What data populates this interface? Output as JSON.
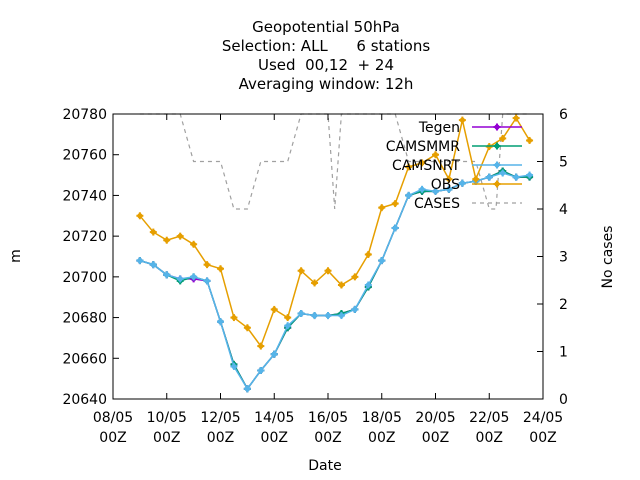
{
  "chart_data": {
    "type": "line",
    "title_lines": [
      "Geopotential 50hPa",
      "Selection: ALL      6 stations",
      "Used  00,12  + 24",
      "Averaging window: 12h"
    ],
    "xlabel": "Date",
    "ylabel": "m",
    "y2label": "No cases",
    "xlim": [
      "2017-05-08 00:00",
      "2017-05-24 00:00"
    ],
    "ylim": [
      20640,
      20780
    ],
    "y2lim": [
      0,
      6
    ],
    "x_ticks": [
      {
        "line1": "08/05",
        "line2": "00Z"
      },
      {
        "line1": "10/05",
        "line2": "00Z"
      },
      {
        "line1": "12/05",
        "line2": "00Z"
      },
      {
        "line1": "14/05",
        "line2": "00Z"
      },
      {
        "line1": "16/05",
        "line2": "00Z"
      },
      {
        "line1": "18/05",
        "line2": "00Z"
      },
      {
        "line1": "20/05",
        "line2": "00Z"
      },
      {
        "line1": "22/05",
        "line2": "00Z"
      },
      {
        "line1": "24/05",
        "line2": "00Z"
      }
    ],
    "y_ticks": [
      "20640",
      "20660",
      "20680",
      "20700",
      "20720",
      "20740",
      "20760",
      "20780"
    ],
    "y2_ticks": [
      "0",
      "1",
      "2",
      "3",
      "4",
      "5",
      "6"
    ],
    "x": [
      "2017-05-09 00:00",
      "2017-05-09 12:00",
      "2017-05-10 00:00",
      "2017-05-10 12:00",
      "2017-05-11 00:00",
      "2017-05-11 12:00",
      "2017-05-12 00:00",
      "2017-05-12 12:00",
      "2017-05-13 00:00",
      "2017-05-13 12:00",
      "2017-05-14 00:00",
      "2017-05-14 12:00",
      "2017-05-15 00:00",
      "2017-05-15 12:00",
      "2017-05-16 00:00",
      "2017-05-16 12:00",
      "2017-05-17 00:00",
      "2017-05-17 12:00",
      "2017-05-18 00:00",
      "2017-05-18 12:00",
      "2017-05-19 00:00",
      "2017-05-19 12:00",
      "2017-05-20 00:00",
      "2017-05-20 12:00",
      "2017-05-21 00:00",
      "2017-05-21 12:00",
      "2017-05-22 00:00",
      "2017-05-22 12:00",
      "2017-05-23 00:00",
      "2017-05-23 12:00"
    ],
    "legend_position": "top-right",
    "grid": false,
    "series": [
      {
        "name": "Tegen",
        "axis": "y1",
        "color": "#9400d3",
        "marker": "plus",
        "values": [
          20708,
          20706,
          20701,
          20699,
          20699,
          20698,
          20678,
          20657,
          20645,
          20654,
          20662,
          20675,
          20682,
          20681,
          20681,
          20682,
          20684,
          20695,
          20708,
          20724,
          20740,
          20742,
          20742,
          20743,
          20746,
          20747,
          20749,
          20752,
          20749,
          20749
        ]
      },
      {
        "name": "CAMSMMR",
        "axis": "y1",
        "color": "#009e73",
        "marker": "plus",
        "values": [
          20708,
          20706,
          20701,
          20698,
          20700,
          20698,
          20678,
          20657,
          20645,
          20654,
          20662,
          20675,
          20682,
          20681,
          20681,
          20682,
          20684,
          20695,
          20708,
          20724,
          20740,
          20742,
          20742,
          20743,
          20746,
          20747,
          20749,
          20752,
          20749,
          20749
        ]
      },
      {
        "name": "CAMSNRT",
        "axis": "y1",
        "color": "#56b4e9",
        "marker": "plus",
        "values": [
          20708,
          20706,
          20701,
          20699,
          20700,
          20698,
          20678,
          20656,
          20645,
          20654,
          20662,
          20676,
          20682,
          20681,
          20681,
          20681,
          20684,
          20696,
          20708,
          20724,
          20740,
          20743,
          20742,
          20743,
          20746,
          20747,
          20749,
          20751,
          20749,
          20750
        ]
      },
      {
        "name": "OBS",
        "axis": "y1",
        "color": "#e69f00",
        "marker": "plus",
        "values": [
          20730,
          20722,
          20718,
          20720,
          20716,
          20706,
          20704,
          20680,
          20675,
          20666,
          20684,
          20680,
          20703,
          20697,
          20703,
          20696,
          20700,
          20711,
          20734,
          20736,
          20754,
          20756,
          20760,
          20748,
          20777,
          20748,
          20764,
          20768,
          20778,
          20767
        ]
      },
      {
        "name": "CASES",
        "axis": "y2",
        "color": "#a0a0a0",
        "marker": "none",
        "dash": "dashed",
        "x": [
          "2017-05-09 00:00",
          "2017-05-09 12:00",
          "2017-05-10 00:00",
          "2017-05-10 12:00",
          "2017-05-11 00:00",
          "2017-05-11 12:00",
          "2017-05-12 00:00",
          "2017-05-12 12:00",
          "2017-05-13 00:00",
          "2017-05-13 12:00",
          "2017-05-14 00:00",
          "2017-05-14 12:00",
          "2017-05-15 00:00",
          "2017-05-15 12:00",
          "2017-05-16 00:00",
          "2017-05-16 06:00",
          "2017-05-16 12:00",
          "2017-05-17 00:00",
          "2017-05-17 06:00",
          "2017-05-17 12:00",
          "2017-05-18 00:00",
          "2017-05-18 12:00",
          "2017-05-19 00:00",
          "2017-05-19 12:00",
          "2017-05-20 00:00",
          "2017-05-20 12:00",
          "2017-05-21 00:00",
          "2017-05-21 12:00",
          "2017-05-22 00:00",
          "2017-05-22 06:00",
          "2017-05-22 12:00",
          "2017-05-23 00:00",
          "2017-05-23 12:00"
        ],
        "values": [
          6,
          6,
          6,
          6,
          5,
          5,
          5,
          4,
          4,
          5,
          5,
          5,
          6,
          6,
          6,
          4,
          6,
          6,
          6,
          6,
          6,
          6,
          5,
          5,
          5,
          5,
          5,
          5,
          4,
          4,
          6,
          6,
          6
        ]
      }
    ]
  }
}
